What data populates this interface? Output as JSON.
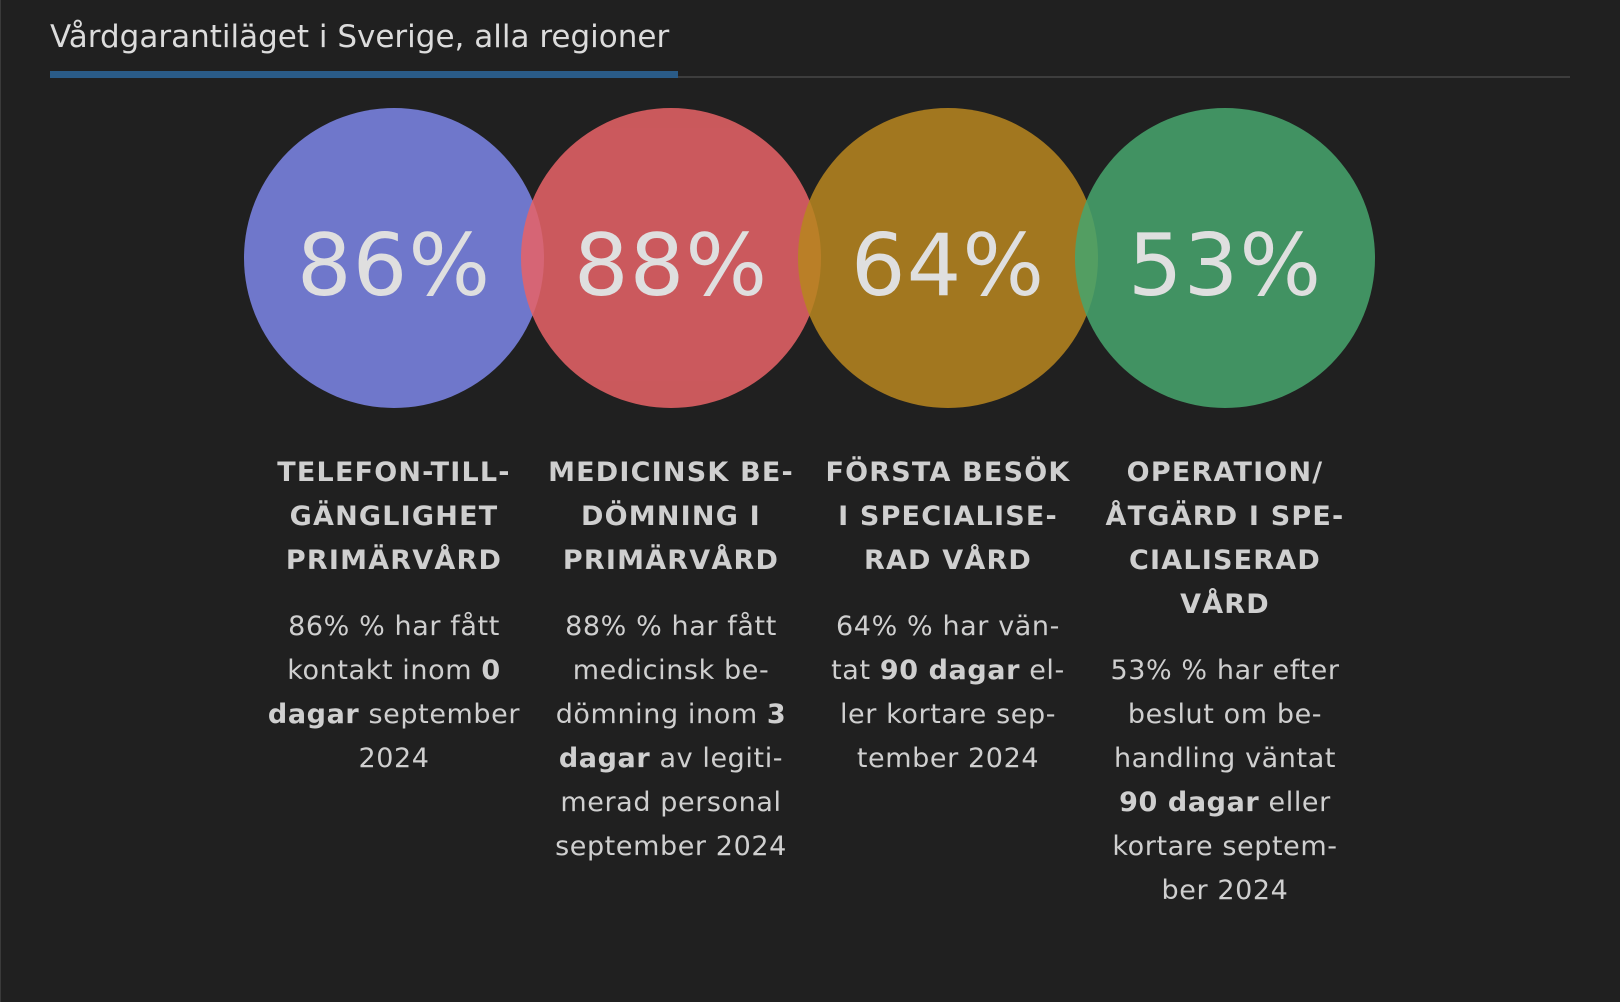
{
  "title": "Vårdgarantiläget i Sverige, alla regioner",
  "colors": {
    "background": "#202020",
    "accent": "#2a5b87",
    "circle_1": "#7d86e8",
    "circle_2": "#e76367",
    "circle_3": "#b8861f",
    "circle_4": "#47a56d"
  },
  "cards": [
    {
      "percent": "86%",
      "label_lines": [
        "TELEFON-TILL-",
        "GÄNGLIGHET",
        "PRIMÄRVÅRD"
      ],
      "desc_lines": [
        "86% % har fått",
        "kontakt inom ",
        "0",
        "dagar",
        " september",
        "2024"
      ]
    },
    {
      "percent": "88%",
      "label_lines": [
        "MEDICINSK BE-",
        "DÖMNING I",
        "PRIMÄRVÅRD"
      ],
      "desc_lines": [
        "88% % har fått",
        "medicinsk be-",
        "dömning inom ",
        "3",
        "dagar",
        " av legiti-",
        "merad personal",
        "september 2024"
      ]
    },
    {
      "percent": "64%",
      "label_lines": [
        "FÖRSTA BESÖK",
        "I SPECIALISE-",
        "RAD VÅRD"
      ],
      "desc_lines": [
        "64% % har vän-",
        "tat ",
        "90 dagar",
        " el-",
        "ler kortare sep-",
        "tember 2024"
      ]
    },
    {
      "percent": "53%",
      "label_lines": [
        "OPERATION/",
        "ÅTGÄRD I SPE-",
        "CIALISERAD",
        "VÅRD"
      ],
      "desc_lines": [
        "53% % har efter",
        "beslut om be-",
        "handling väntat",
        "90 dagar",
        " eller",
        "kortare septem-",
        "ber 2024"
      ]
    }
  ]
}
